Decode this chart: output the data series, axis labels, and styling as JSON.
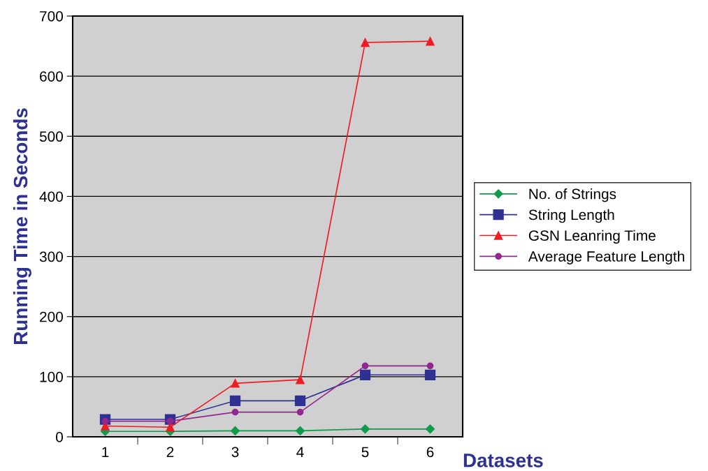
{
  "chart_data": {
    "type": "line",
    "xlabel": "Datasets",
    "ylabel": "Running Time in Seconds",
    "categories": [
      "1",
      "2",
      "3",
      "4",
      "5",
      "6"
    ],
    "series": [
      {
        "name": "No. of Strings",
        "color": "#129a4c",
        "marker": "diamond",
        "values": [
          9,
          9,
          10,
          10,
          13,
          13
        ]
      },
      {
        "name": "String Length",
        "color": "#2e3192",
        "marker": "square",
        "values": [
          29,
          29,
          60,
          60,
          103,
          103
        ]
      },
      {
        "name": "GSN Leanring Time",
        "color": "#ed1c24",
        "marker": "triangle",
        "values": [
          18,
          16,
          89,
          95,
          656,
          658
        ]
      },
      {
        "name": "Average Feature Length",
        "color": "#92278f",
        "marker": "circle",
        "values": [
          26,
          26,
          41,
          41,
          118,
          118
        ]
      }
    ],
    "ylim": [
      0,
      700
    ],
    "yticks": [
      0,
      100,
      200,
      300,
      400,
      500,
      600,
      700
    ],
    "grid": "y",
    "legend": "right",
    "line_style": "solid"
  }
}
